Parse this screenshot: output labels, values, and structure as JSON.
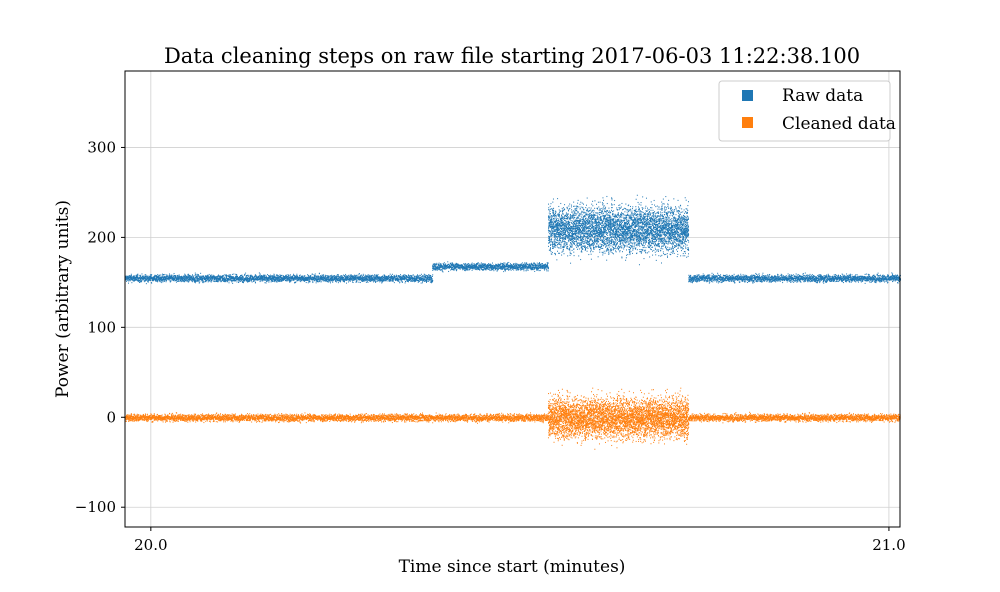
{
  "chart_data": {
    "type": "scatter",
    "title": "Data cleaning steps on raw file starting 2017-06-03 11:22:38.100",
    "xlabel": "Time since start (minutes)",
    "ylabel": "Power (arbitrary units)",
    "xlim": [
      19.965,
      21.015
    ],
    "ylim": [
      -122,
      385
    ],
    "xticks": [
      20.0,
      21.0
    ],
    "xtick_labels": [
      "20.0",
      "21.0"
    ],
    "yticks": [
      -100,
      0,
      100,
      200,
      300
    ],
    "ytick_labels": [
      "−100",
      "0",
      "100",
      "200",
      "300"
    ],
    "grid": true,
    "legend_position": "top-right",
    "series": [
      {
        "name": "Raw data",
        "color": "#1f77b4",
        "segments": [
          {
            "x_start": 19.965,
            "x_end": 20.381,
            "level": 155,
            "spread": 4
          },
          {
            "x_start": 20.381,
            "x_end": 20.538,
            "level": 168,
            "spread": 4
          },
          {
            "x_start": 20.538,
            "x_end": 20.728,
            "level": 210,
            "spread": 25
          },
          {
            "x_start": 20.728,
            "x_end": 21.015,
            "level": 155,
            "spread": 4
          }
        ]
      },
      {
        "name": "Cleaned data",
        "color": "#ff7f0e",
        "segments": [
          {
            "x_start": 19.965,
            "x_end": 20.538,
            "level": 0,
            "spread": 4
          },
          {
            "x_start": 20.538,
            "x_end": 20.728,
            "level": 0,
            "spread": 22
          },
          {
            "x_start": 20.728,
            "x_end": 21.015,
            "level": 0,
            "spread": 4
          }
        ]
      }
    ]
  }
}
